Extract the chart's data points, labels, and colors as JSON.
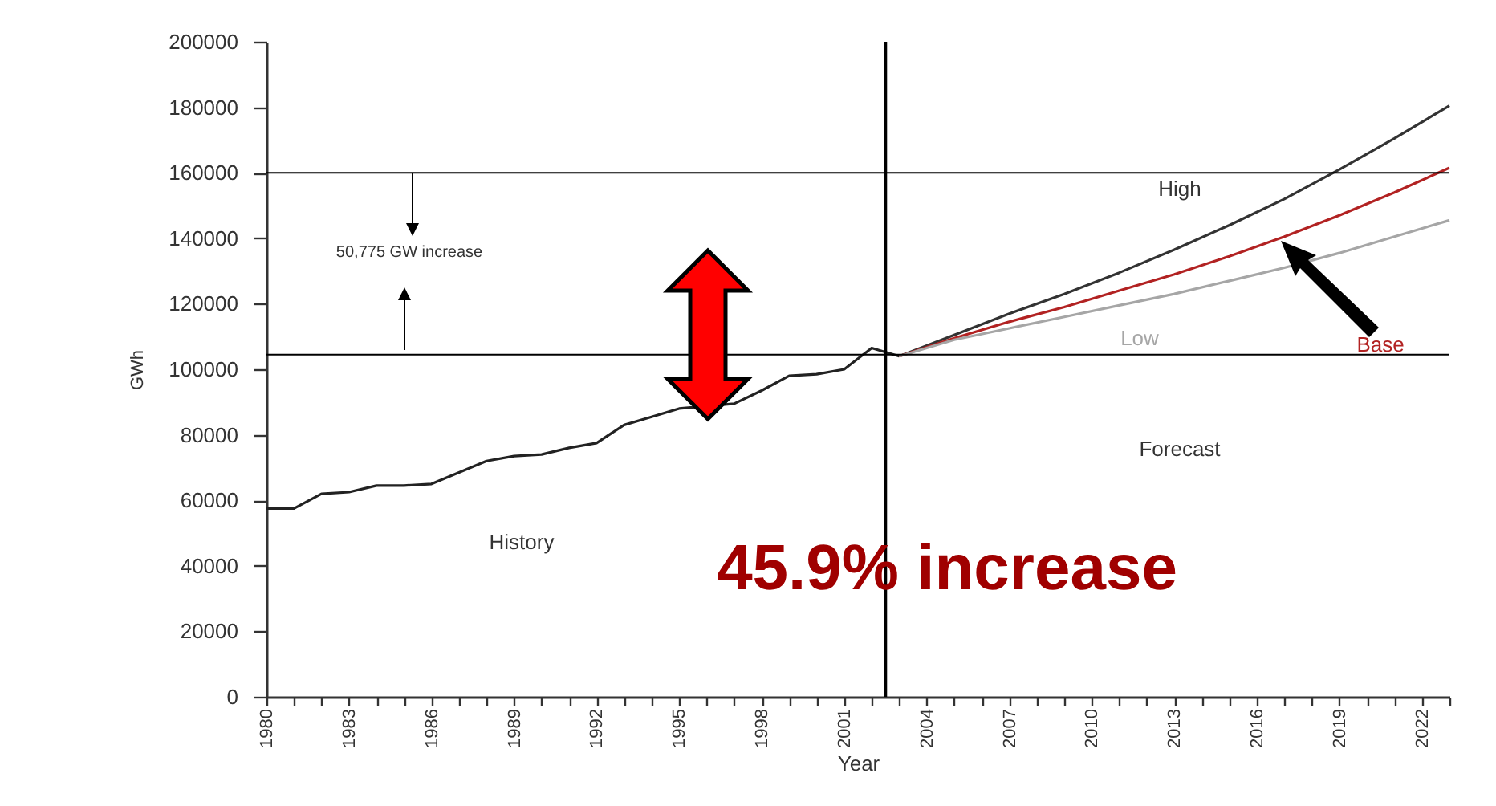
{
  "chart_data": {
    "type": "line",
    "xlabel": "Year",
    "ylabel": "GWh",
    "xlim": [
      1980,
      2023
    ],
    "ylim": [
      0,
      200000
    ],
    "xticks": [
      1980,
      {
        "value": 1981,
        "label": null
      },
      {
        "value": 1982,
        "label": null
      },
      1983,
      {
        "value": 1984,
        "label": null
      },
      {
        "value": 1985,
        "label": null
      },
      1986,
      {
        "value": 1987,
        "label": null
      },
      {
        "value": 1988,
        "label": null
      },
      1989,
      {
        "value": 1990,
        "label": null
      },
      {
        "value": 1991,
        "label": null
      },
      1992,
      {
        "value": 1993,
        "label": null
      },
      {
        "value": 1994,
        "label": null
      },
      1995,
      {
        "value": 1996,
        "label": null
      },
      {
        "value": 1997,
        "label": null
      },
      1998,
      {
        "value": 1999,
        "label": null
      },
      {
        "value": 2000,
        "label": null
      },
      2001,
      {
        "value": 2002,
        "label": null
      },
      {
        "value": 2003,
        "label": null
      },
      2004,
      {
        "value": 2005,
        "label": null
      },
      {
        "value": 2006,
        "label": null
      },
      2007,
      {
        "value": 2008,
        "label": null
      },
      {
        "value": 2009,
        "label": null
      },
      2010,
      {
        "value": 2011,
        "label": null
      },
      {
        "value": 2012,
        "label": null
      },
      2013,
      {
        "value": 2014,
        "label": null
      },
      {
        "value": 2015,
        "label": null
      },
      2016,
      {
        "value": 2017,
        "label": null
      },
      {
        "value": 2018,
        "label": null
      },
      2019,
      {
        "value": 2020,
        "label": null
      },
      {
        "value": 2021,
        "label": null
      },
      2022,
      {
        "value": 2023,
        "label": null
      }
    ],
    "yticks": [
      0,
      20000,
      40000,
      60000,
      80000,
      100000,
      120000,
      140000,
      160000,
      180000,
      200000
    ],
    "grid": false,
    "legend": false,
    "marker": "none",
    "line_style": "solid",
    "series": [
      {
        "color": "#222222",
        "x": [
          1980,
          1981,
          1982,
          1983,
          1984,
          1985,
          1986,
          1987,
          1988,
          1989,
          1990,
          1991,
          1992,
          1993,
          1994,
          1995,
          1996,
          1997,
          1998,
          1999,
          2000,
          2001,
          2002,
          2003
        ],
        "values": [
          57500,
          57500,
          62000,
          62500,
          64500,
          64500,
          65000,
          68500,
          72000,
          73500,
          74000,
          76000,
          77500,
          83000,
          85500,
          88000,
          null,
          89500,
          93500,
          98000,
          98500,
          100000,
          106500,
          104000
        ]
      },
      {
        "name": "High",
        "color": "#333333",
        "x": [
          2003,
          2005,
          2007,
          2009,
          2011,
          2013,
          2015,
          2017,
          2019,
          2021,
          2023
        ],
        "values": [
          104000,
          110500,
          117000,
          123000,
          129500,
          136500,
          144000,
          152000,
          161000,
          170500,
          180500
        ]
      },
      {
        "name": "Base",
        "color": "#b22222",
        "x": [
          2003,
          2005,
          2007,
          2009,
          2011,
          2013,
          2015,
          2017,
          2019,
          2021,
          2023
        ],
        "values": [
          104000,
          109500,
          114500,
          119000,
          124000,
          129000,
          134500,
          140500,
          147000,
          154000,
          161500
        ]
      },
      {
        "name": "Low",
        "color": "#a6a6a6",
        "x": [
          2003,
          2005,
          2007,
          2009,
          2011,
          2013,
          2015,
          2017,
          2019,
          2021,
          2023
        ],
        "values": [
          104000,
          109000,
          112500,
          116000,
          119500,
          123000,
          127000,
          131000,
          135500,
          140500,
          145500
        ]
      }
    ],
    "ref_lines": [
      {
        "axis": "y",
        "value": 160000,
        "color": "#000000"
      },
      {
        "axis": "y",
        "value": 104500,
        "color": "#000000"
      },
      {
        "axis": "x",
        "value": 2002.5,
        "color": "#000000"
      }
    ],
    "annotations": [
      "50,775 GW increase",
      "History",
      "Forecast",
      "45.9% increase"
    ]
  }
}
